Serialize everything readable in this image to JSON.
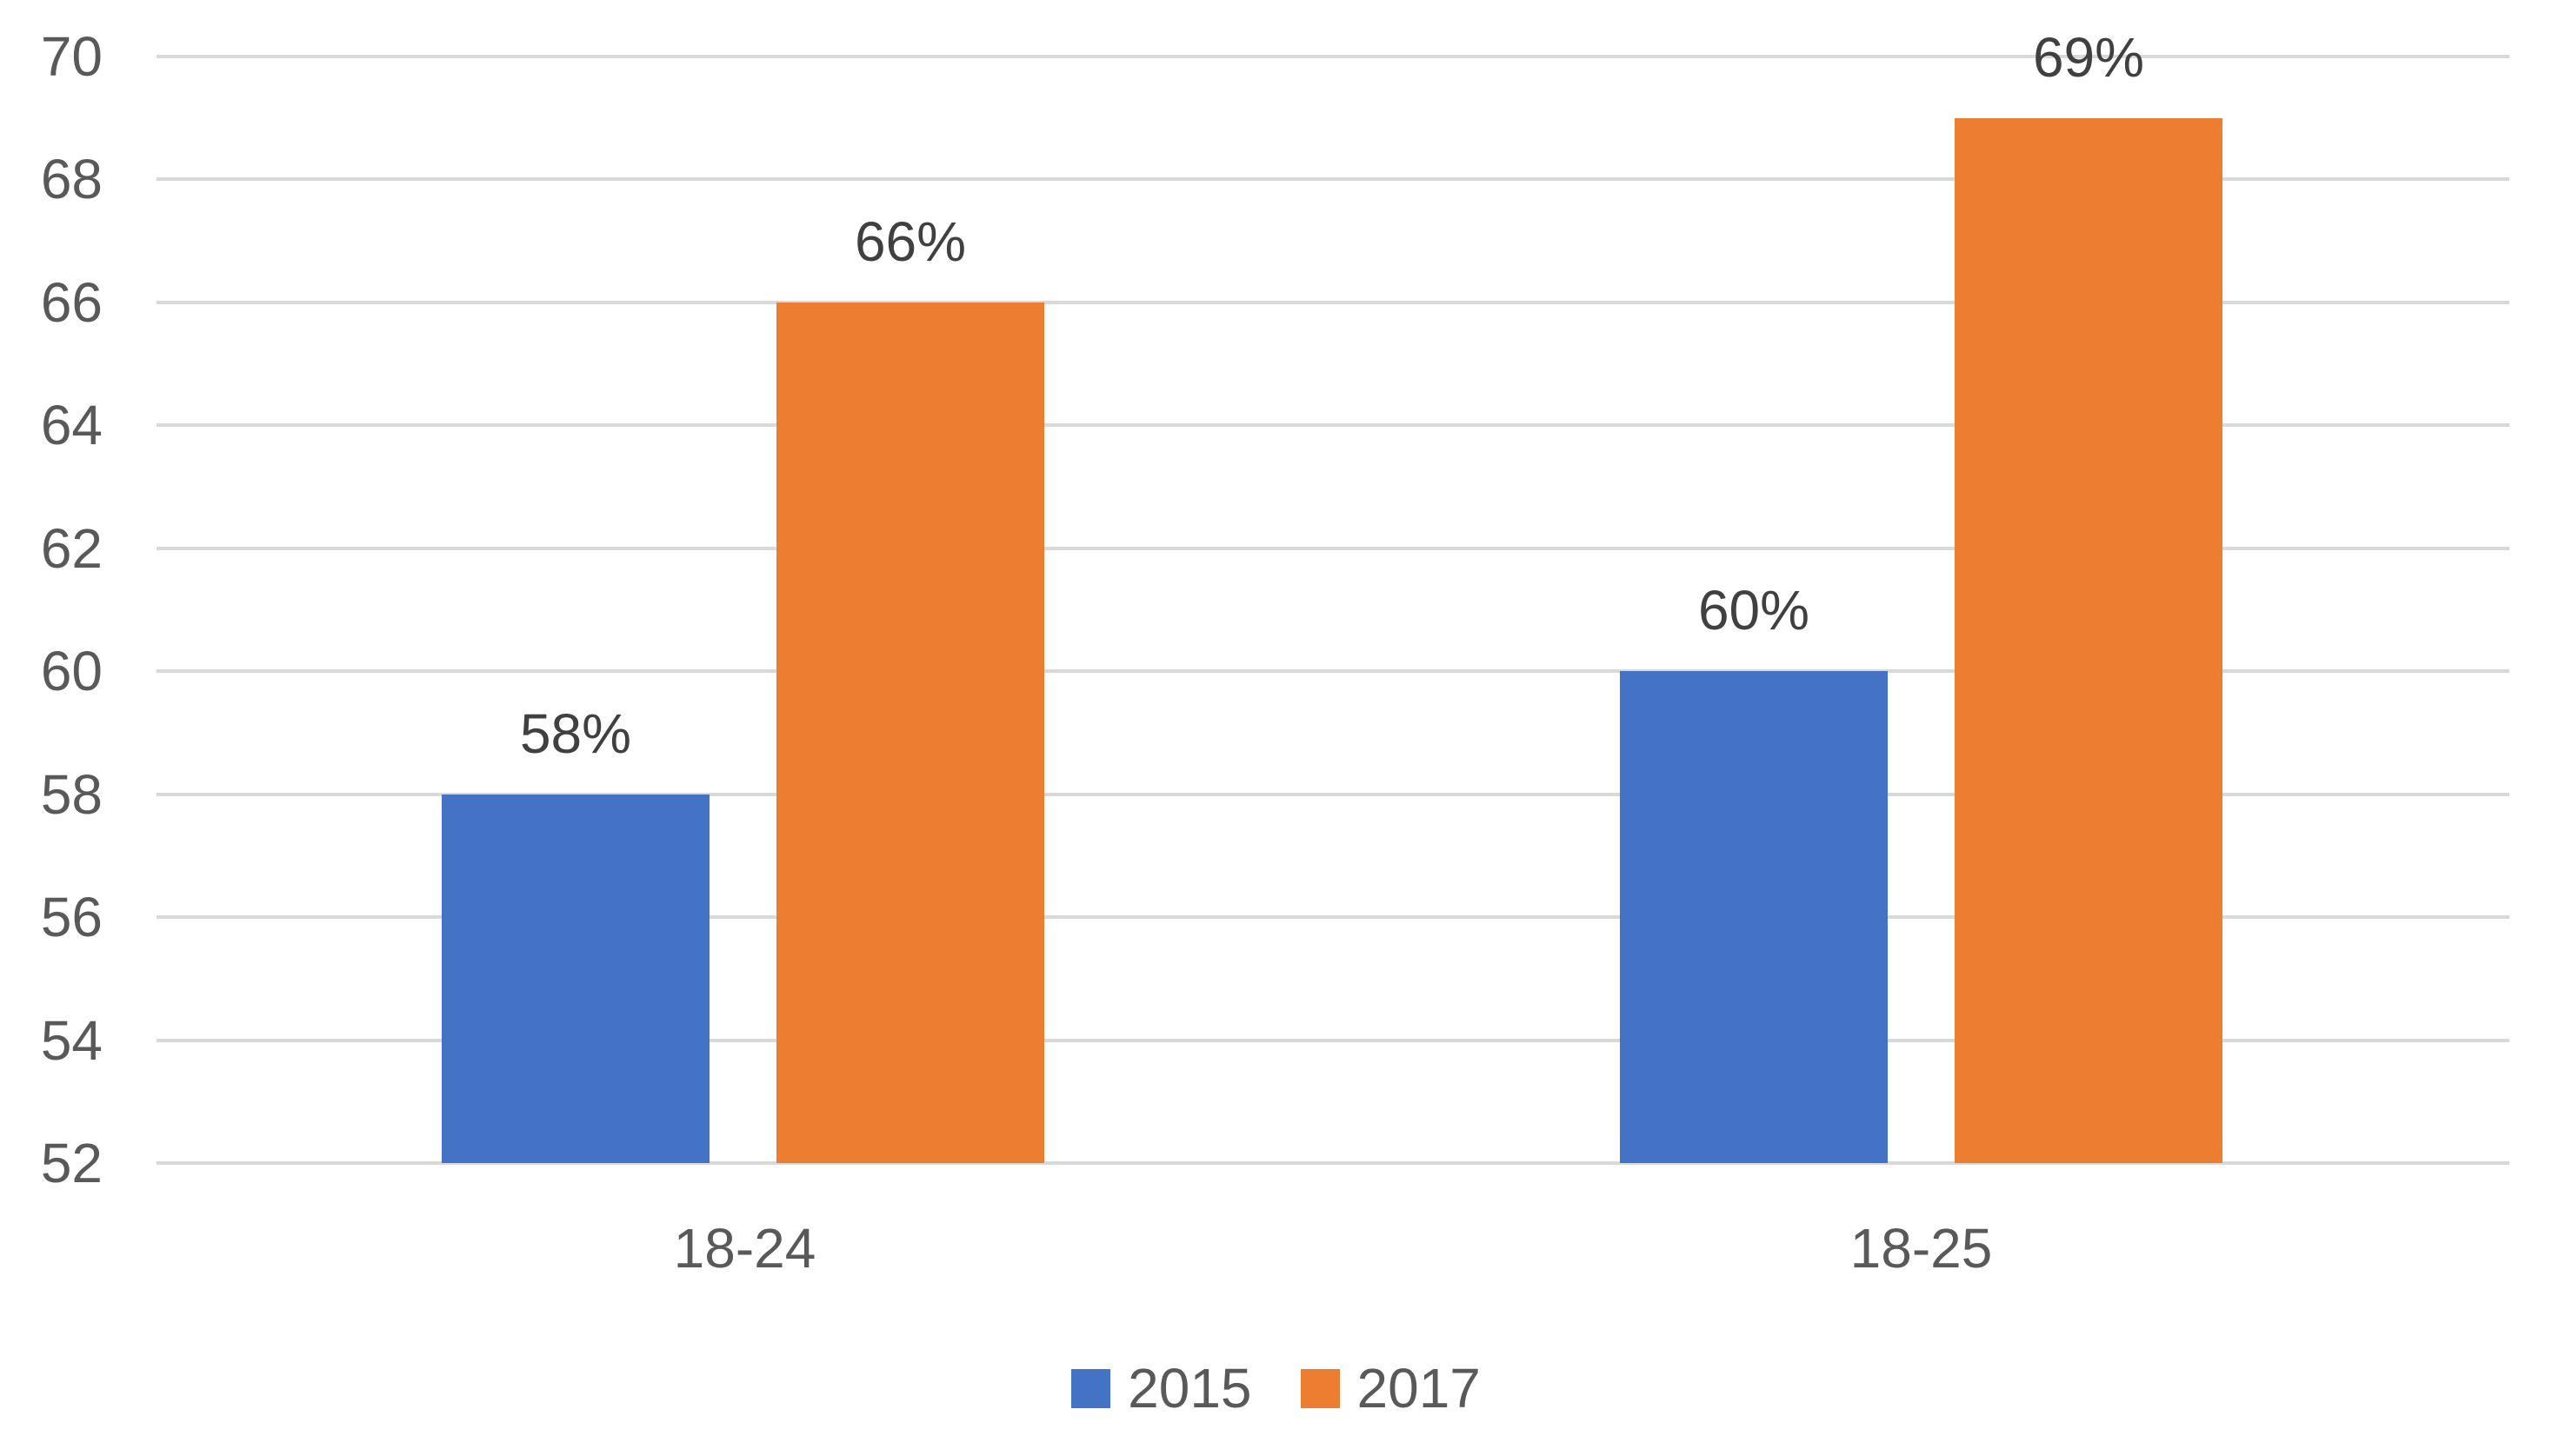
{
  "chart_data": {
    "type": "bar",
    "categories": [
      "18-24",
      "18-25"
    ],
    "series": [
      {
        "name": "2015",
        "color": "#4472C4",
        "values": [
          58,
          60
        ],
        "labels": [
          "58%",
          "60%"
        ]
      },
      {
        "name": "2017",
        "color": "#ED7D31",
        "values": [
          66,
          69
        ],
        "labels": [
          "66%",
          "69%"
        ]
      }
    ],
    "yaxis": {
      "min": 52,
      "max": 70,
      "step": 2,
      "tick_labels": [
        "70",
        "68",
        "66",
        "64",
        "62",
        "60",
        "58",
        "56",
        "54",
        "52"
      ]
    },
    "grid": true,
    "legend_position": "bottom",
    "title": "",
    "xlabel": "",
    "ylabel": ""
  },
  "colors": {
    "background": "#FFFFFF",
    "gridline": "#D9D9D9",
    "axis_text": "#595959",
    "data_label_text": "#404040"
  }
}
